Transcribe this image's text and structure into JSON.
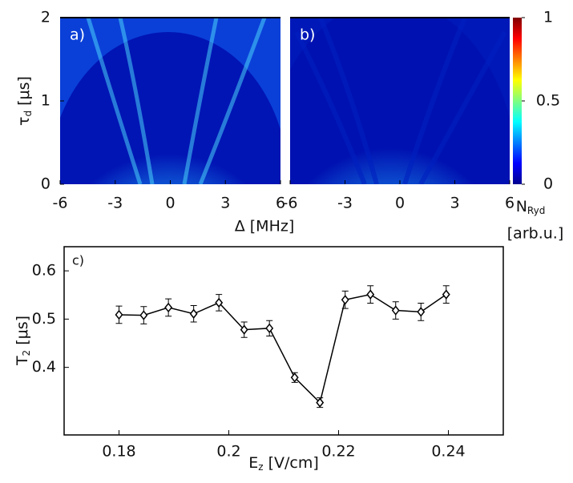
{
  "chart_data": [
    {
      "type": "heatmap",
      "panel_label": "a)",
      "xlim": [
        -6,
        6
      ],
      "ylim": [
        0,
        2
      ],
      "xticks": [
        -6,
        -3,
        0,
        3,
        6
      ],
      "yticks": [
        0,
        1,
        2
      ],
      "xlabel": "Δ [MHz]",
      "ylabel": {
        "text": "τ",
        "sub": "d",
        "rest": " [μs]"
      }
    },
    {
      "type": "heatmap",
      "panel_label": "b)",
      "xlim": [
        -6,
        6
      ],
      "ylim": [
        0,
        2
      ],
      "xticks": [
        -6,
        -3,
        0,
        3,
        6
      ],
      "yticks": [
        0,
        1,
        2
      ],
      "colorbar": {
        "clim": [
          0,
          1
        ],
        "ticks": [
          0,
          0.5,
          1
        ],
        "label": {
          "text": "N",
          "sub": "Ryd",
          "rest": "[arb.u.]"
        }
      }
    },
    {
      "type": "line",
      "panel_label": "c)",
      "color": "#000000",
      "x": [
        0.18,
        0.1845,
        0.189,
        0.1936,
        0.1982,
        0.2028,
        0.2074,
        0.212,
        0.2166,
        0.2212,
        0.2258,
        0.2304,
        0.235,
        0.2396
      ],
      "values": [
        0.509,
        0.508,
        0.524,
        0.511,
        0.534,
        0.478,
        0.481,
        0.379,
        0.327,
        0.54,
        0.551,
        0.518,
        0.515,
        0.551
      ],
      "errors": [
        0.018,
        0.018,
        0.018,
        0.017,
        0.017,
        0.016,
        0.016,
        0.01,
        0.01,
        0.018,
        0.018,
        0.018,
        0.018,
        0.018
      ],
      "xlim": [
        0.17,
        0.25
      ],
      "ylim": [
        0.26,
        0.65
      ],
      "xticks": [
        0.18,
        0.2,
        0.22,
        0.24
      ],
      "yticks": [
        0.4,
        0.5,
        0.6
      ],
      "xlabel": {
        "text": "E",
        "sub": "z",
        "rest": " [V/cm]"
      },
      "ylabel": {
        "text": "T",
        "sub": "2",
        "rest": " [μs]"
      }
    }
  ]
}
